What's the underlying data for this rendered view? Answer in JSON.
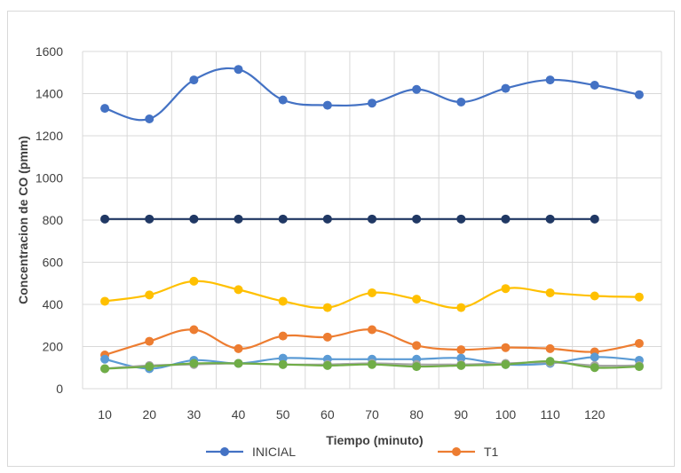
{
  "chart_data": {
    "type": "line",
    "title": "",
    "xlabel": "Tiempo (minuto)",
    "ylabel": "Concentracion de CO (pmm)",
    "ylim": [
      0,
      1600
    ],
    "yticks": [
      0,
      200,
      400,
      600,
      800,
      1000,
      1200,
      1400,
      1600
    ],
    "categories": [
      "10",
      "20",
      "30",
      "40",
      "50",
      "60",
      "70",
      "80",
      "90",
      "100",
      "110",
      "120",
      ""
    ],
    "grid": true,
    "legend": "bottom",
    "series": [
      {
        "name": "INICIAL",
        "color": "#4472c4",
        "smooth": true,
        "values": [
          1330,
          1280,
          1465,
          1515,
          1370,
          1345,
          1355,
          1420,
          1360,
          1425,
          1465,
          1440,
          1395
        ]
      },
      {
        "name": "",
        "color": "#203864",
        "smooth": false,
        "values": [
          805,
          805,
          805,
          805,
          805,
          805,
          805,
          805,
          805,
          805,
          805,
          805,
          null
        ]
      },
      {
        "name": "",
        "color": "#ffc000",
        "smooth": true,
        "values": [
          415,
          445,
          510,
          470,
          415,
          385,
          455,
          425,
          385,
          475,
          455,
          440,
          435
        ]
      },
      {
        "name": "T1",
        "color": "#ed7d31",
        "smooth": true,
        "values": [
          160,
          225,
          280,
          190,
          250,
          245,
          280,
          205,
          185,
          195,
          190,
          175,
          215
        ]
      },
      {
        "name": "",
        "color": "#5b9bd5",
        "smooth": true,
        "values": [
          140,
          95,
          135,
          120,
          145,
          140,
          140,
          140,
          145,
          115,
          120,
          150,
          135
        ]
      },
      {
        "name": "",
        "color": "#a5a5a5",
        "smooth": true,
        "values": [
          95,
          110,
          115,
          120,
          115,
          115,
          120,
          115,
          115,
          120,
          125,
          110,
          110
        ]
      },
      {
        "name": "",
        "color": "#70ad47",
        "smooth": true,
        "values": [
          95,
          105,
          120,
          120,
          115,
          110,
          115,
          105,
          110,
          115,
          130,
          100,
          105
        ]
      }
    ]
  }
}
